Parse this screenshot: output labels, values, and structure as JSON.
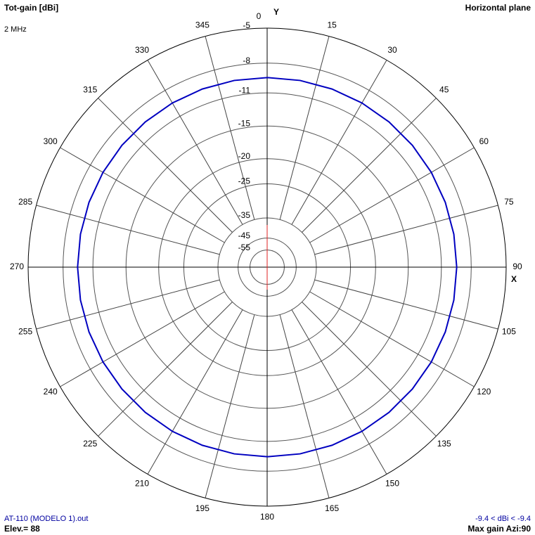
{
  "chart_data": {
    "type": "polar",
    "title": "Tot-gain [dBi]",
    "frequency_label": "2 MHz",
    "plane_label": "Horizontal plane",
    "x_axis_label": "X",
    "y_axis_label": "Y",
    "file_label": "AT-110 (MODELO 1).out",
    "elevation_label": "Elev.= 88",
    "range_label": "-9.4 < dBi < -9.4",
    "max_gain_label": "Max gain Azi:90",
    "rlim": [
      -55,
      -5
    ],
    "rticks": [
      -5,
      -8,
      -11,
      -15,
      -20,
      -25,
      -35,
      -45,
      -55
    ],
    "angle_ticks": [
      0,
      15,
      30,
      45,
      60,
      75,
      90,
      105,
      120,
      135,
      150,
      165,
      180,
      195,
      210,
      225,
      240,
      255,
      270,
      285,
      300,
      315,
      330,
      345
    ],
    "series": [
      {
        "color": "#0000c0",
        "angles": [
          0,
          10,
          20,
          30,
          40,
          50,
          60,
          70,
          80,
          90,
          100,
          110,
          120,
          130,
          140,
          150,
          160,
          170,
          180,
          190,
          200,
          210,
          220,
          230,
          240,
          250,
          260,
          270,
          280,
          290,
          300,
          310,
          320,
          330,
          340,
          350
        ],
        "values": [
          -9.4,
          -9.4,
          -9.4,
          -9.4,
          -9.4,
          -9.4,
          -9.4,
          -9.4,
          -9.4,
          -9.4,
          -9.4,
          -9.4,
          -9.4,
          -9.4,
          -9.4,
          -9.4,
          -9.4,
          -9.4,
          -9.4,
          -9.4,
          -9.4,
          -9.4,
          -9.4,
          -9.4,
          -9.4,
          -9.4,
          -9.4,
          -9.4,
          -9.4,
          -9.4,
          -9.4,
          -9.4,
          -9.4,
          -9.4,
          -9.4,
          -9.4
        ]
      }
    ]
  }
}
